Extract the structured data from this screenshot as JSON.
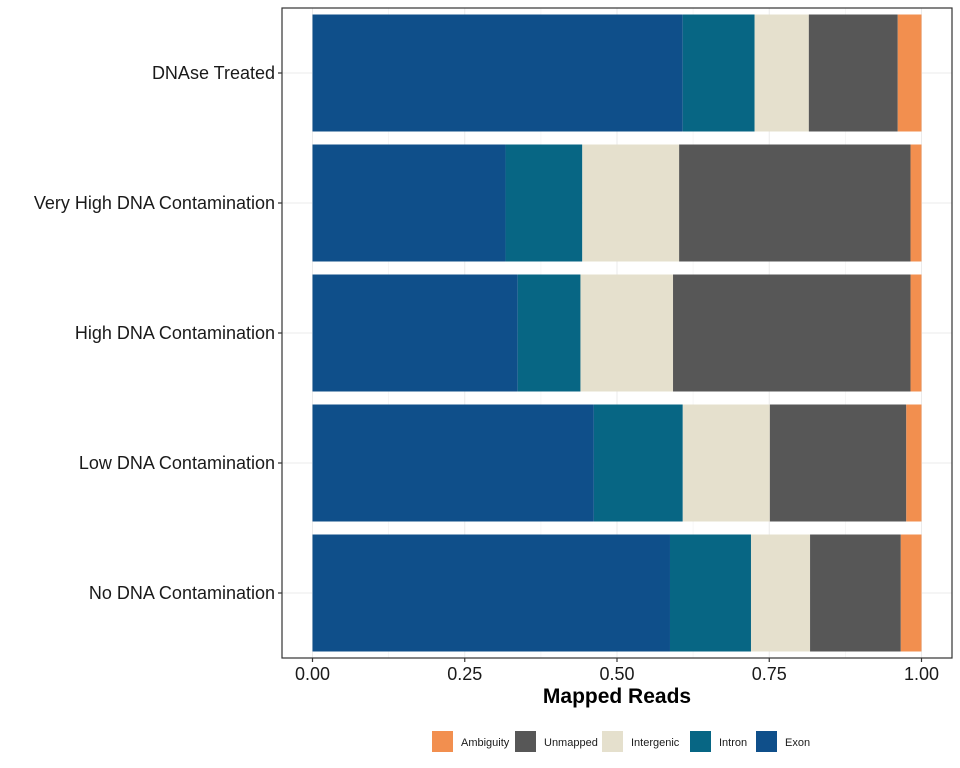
{
  "chart_data": {
    "type": "bar",
    "orientation": "horizontal",
    "stacked": "fill",
    "xlabel": "Mapped Reads",
    "ylabel": "",
    "xlim": [
      0,
      1
    ],
    "xticks": [
      "0.00",
      "0.25",
      "0.50",
      "0.75",
      "1.00"
    ],
    "xtick_values": [
      0,
      0.25,
      0.5,
      0.75,
      1.0
    ],
    "grid": true,
    "legend_position": "bottom",
    "categories": [
      "DNAse Treated",
      "Very High DNA Contamination",
      "High DNA Contamination",
      "Low DNA Contamination",
      "No DNA Contamination"
    ],
    "series": [
      {
        "name": "Exon",
        "color": "#0F4F8A",
        "values": [
          0.608,
          0.317,
          0.337,
          0.462,
          0.587
        ]
      },
      {
        "name": "Intron",
        "color": "#076684",
        "values": [
          0.118,
          0.126,
          0.103,
          0.146,
          0.133
        ]
      },
      {
        "name": "Intergenic",
        "color": "#E5E0CD",
        "values": [
          0.089,
          0.159,
          0.152,
          0.143,
          0.097
        ]
      },
      {
        "name": "Unmapped",
        "color": "#575757",
        "values": [
          0.146,
          0.38,
          0.39,
          0.224,
          0.149
        ]
      },
      {
        "name": "Ambiguity",
        "color": "#F28F4F",
        "values": [
          0.039,
          0.018,
          0.018,
          0.025,
          0.034
        ]
      }
    ],
    "legend_order": [
      "Ambiguity",
      "Unmapped",
      "Intergenic",
      "Intron",
      "Exon"
    ]
  }
}
